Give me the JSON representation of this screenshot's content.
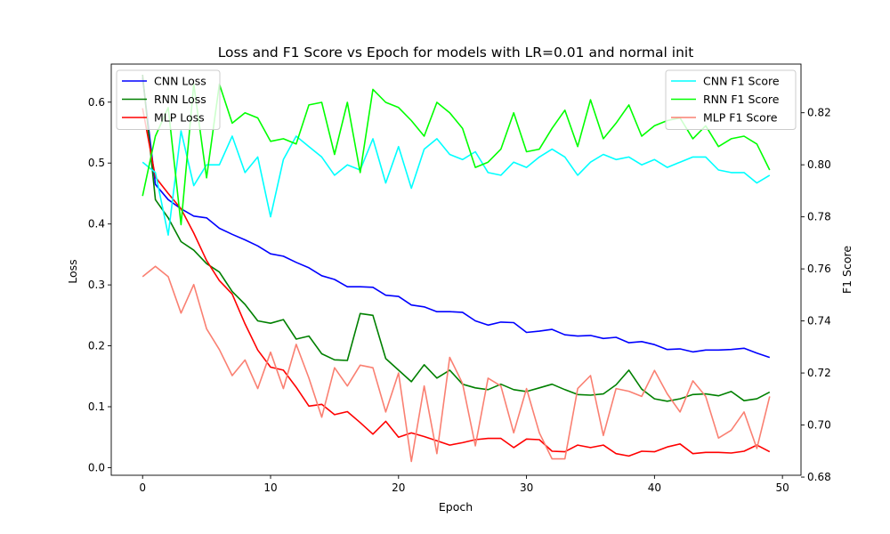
{
  "chart_data": {
    "type": "line",
    "title": "Loss and F1 Score vs Epoch for models with LR=0.01 and normal init",
    "xlabel": "Epoch",
    "ylabel_left": "Loss",
    "ylabel_right": "F1 Score",
    "xlim": [
      -2.45,
      51.45
    ],
    "ylim_left": [
      -0.0125,
      0.6625
    ],
    "ylim_right": [
      0.6807,
      0.8387
    ],
    "xticks": [
      0,
      10,
      20,
      30,
      40,
      50
    ],
    "yticks_left": [
      0.0,
      0.1,
      0.2,
      0.3,
      0.4,
      0.5,
      0.6
    ],
    "yticks_right": [
      0.68,
      0.7,
      0.72,
      0.74,
      0.76,
      0.78,
      0.8,
      0.82
    ],
    "ytick_labels_left": [
      "0.0",
      "0.1",
      "0.2",
      "0.3",
      "0.4",
      "0.5",
      "0.6"
    ],
    "ytick_labels_right": [
      "0.68",
      "0.70",
      "0.72",
      "0.74",
      "0.76",
      "0.78",
      "0.80",
      "0.82"
    ],
    "legend_left_position": "upper-left",
    "legend_right_position": "upper-right",
    "x": [
      0,
      1,
      2,
      3,
      4,
      5,
      6,
      7,
      8,
      9,
      10,
      11,
      12,
      13,
      14,
      15,
      16,
      17,
      18,
      19,
      20,
      21,
      22,
      23,
      24,
      25,
      26,
      27,
      28,
      29,
      30,
      31,
      32,
      33,
      34,
      35,
      36,
      37,
      38,
      39,
      40,
      41,
      42,
      43,
      44,
      45,
      46,
      47,
      48,
      49
    ],
    "series_left": [
      {
        "name": "CNN Loss",
        "color": "#0000ff",
        "values": [
          0.64,
          0.465,
          0.44,
          0.425,
          0.413,
          0.41,
          0.393,
          0.383,
          0.374,
          0.364,
          0.351,
          0.347,
          0.337,
          0.328,
          0.315,
          0.309,
          0.297,
          0.297,
          0.296,
          0.283,
          0.281,
          0.267,
          0.264,
          0.256,
          0.256,
          0.255,
          0.241,
          0.234,
          0.239,
          0.238,
          0.222,
          0.224,
          0.227,
          0.218,
          0.216,
          0.217,
          0.212,
          0.214,
          0.205,
          0.207,
          0.202,
          0.194,
          0.195,
          0.19,
          0.193,
          0.193,
          0.194,
          0.196,
          0.188,
          0.181
        ]
      },
      {
        "name": "RNN Loss",
        "color": "#008000",
        "values": [
          0.645,
          0.44,
          0.41,
          0.371,
          0.357,
          0.335,
          0.321,
          0.289,
          0.268,
          0.241,
          0.237,
          0.243,
          0.211,
          0.216,
          0.187,
          0.177,
          0.176,
          0.253,
          0.25,
          0.179,
          0.16,
          0.141,
          0.169,
          0.147,
          0.16,
          0.137,
          0.131,
          0.128,
          0.137,
          0.128,
          0.125,
          0.131,
          0.137,
          0.128,
          0.12,
          0.119,
          0.121,
          0.136,
          0.16,
          0.129,
          0.113,
          0.109,
          0.113,
          0.12,
          0.121,
          0.118,
          0.125,
          0.11,
          0.113,
          0.124
        ]
      },
      {
        "name": "MLP Loss",
        "color": "#ff0000",
        "values": [
          0.59,
          0.477,
          0.45,
          0.425,
          0.385,
          0.34,
          0.307,
          0.285,
          0.236,
          0.193,
          0.165,
          0.16,
          0.132,
          0.101,
          0.104,
          0.087,
          0.092,
          0.074,
          0.055,
          0.076,
          0.05,
          0.057,
          0.051,
          0.044,
          0.037,
          0.041,
          0.046,
          0.048,
          0.048,
          0.033,
          0.047,
          0.046,
          0.027,
          0.026,
          0.037,
          0.033,
          0.037,
          0.023,
          0.019,
          0.027,
          0.026,
          0.034,
          0.039,
          0.023,
          0.025,
          0.025,
          0.024,
          0.027,
          0.037,
          0.026
        ]
      }
    ],
    "series_right": [
      {
        "name": "CNN F1 Score",
        "color": "#00ffff",
        "values": [
          0.801,
          0.797,
          0.773,
          0.813,
          0.792,
          0.8,
          0.8,
          0.811,
          0.797,
          0.803,
          0.78,
          0.802,
          0.811,
          0.807,
          0.803,
          0.796,
          0.8,
          0.798,
          0.81,
          0.793,
          0.807,
          0.791,
          0.806,
          0.81,
          0.804,
          0.802,
          0.805,
          0.797,
          0.796,
          0.801,
          0.799,
          0.803,
          0.806,
          0.803,
          0.796,
          0.801,
          0.804,
          0.802,
          0.803,
          0.8,
          0.802,
          0.799,
          0.801,
          0.803,
          0.803,
          0.798,
          0.797,
          0.797,
          0.793,
          0.796
        ]
      },
      {
        "name": "RNN F1 Score",
        "color": "#00ff00",
        "values": [
          0.788,
          0.811,
          0.822,
          0.777,
          0.831,
          0.795,
          0.831,
          0.816,
          0.82,
          0.818,
          0.809,
          0.81,
          0.808,
          0.823,
          0.824,
          0.804,
          0.824,
          0.797,
          0.829,
          0.824,
          0.822,
          0.817,
          0.811,
          0.824,
          0.82,
          0.814,
          0.799,
          0.801,
          0.806,
          0.82,
          0.805,
          0.806,
          0.814,
          0.821,
          0.807,
          0.825,
          0.81,
          0.816,
          0.823,
          0.811,
          0.815,
          0.817,
          0.818,
          0.81,
          0.815,
          0.807,
          0.81,
          0.811,
          0.808,
          0.798
        ]
      },
      {
        "name": "MLP F1 Score",
        "color": "#fa8072",
        "values": [
          0.757,
          0.761,
          0.757,
          0.743,
          0.754,
          0.737,
          0.729,
          0.719,
          0.725,
          0.714,
          0.728,
          0.714,
          0.731,
          0.718,
          0.703,
          0.722,
          0.715,
          0.723,
          0.722,
          0.705,
          0.72,
          0.686,
          0.715,
          0.689,
          0.726,
          0.716,
          0.692,
          0.718,
          0.715,
          0.697,
          0.714,
          0.697,
          0.687,
          0.687,
          0.714,
          0.719,
          0.696,
          0.714,
          0.713,
          0.711,
          0.721,
          0.712,
          0.705,
          0.717,
          0.711,
          0.695,
          0.698,
          0.705,
          0.691,
          0.711
        ]
      }
    ]
  }
}
